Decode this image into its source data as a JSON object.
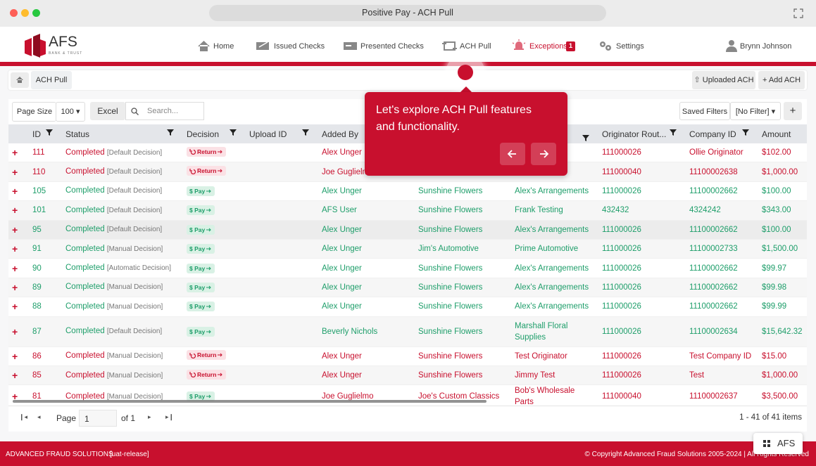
{
  "window": {
    "title": "Positive Pay - ACH Pull"
  },
  "nav": {
    "logo": "AFS",
    "logo_tagline": "BANK & TRUST",
    "items": [
      "Home",
      "Issued Checks",
      "Presented Checks",
      "ACH Pull",
      "Exceptions",
      "Settings"
    ],
    "exceptions_badge": "1",
    "user": "Brynn Johnson"
  },
  "breadcrumb": {
    "current": "ACH Pull",
    "actions": [
      "Uploaded ACH",
      "Add ACH"
    ]
  },
  "toolbar": {
    "page_size_label": "Page Size",
    "page_size": "100",
    "export": "Excel",
    "search_placeholder": "Search...",
    "saved_filters": "Saved Filters",
    "filter": "[No Filter]"
  },
  "tour": {
    "text": "Let's explore ACH Pull features and functionality."
  },
  "table": {
    "headers": [
      "ID",
      "Status",
      "Decision",
      "Upload ID",
      "Added By",
      null,
      null,
      "Originator Rout...",
      "Company ID",
      "Amount"
    ],
    "rows": [
      {
        "id": "111",
        "status": "Completed",
        "status_note": "[Default Decision]",
        "decision": "Return",
        "added_by": "Alex Unger",
        "col6": null,
        "col7": null,
        "originator_routing": "111000026",
        "company_id": "Ollie Originator",
        "amount": "$102.00",
        "color": "#c8102e"
      },
      {
        "id": "110",
        "status": "Completed",
        "status_note": "[Default Decision]",
        "decision": "Return",
        "added_by": "Joe Guglielmo",
        "col6": null,
        "col7": null,
        "originator_routing": "111000040",
        "company_id": "11100002638",
        "amount": "$1,000.00",
        "color": "#c8102e"
      },
      {
        "id": "105",
        "status": "Completed",
        "status_note": "[Default Decision]",
        "decision": "$ Pay",
        "added_by": "Alex Unger",
        "col6": "Sunshine Flowers",
        "col7": "Alex's Arrangements",
        "originator_routing": "111000026",
        "company_id": "11100002662",
        "amount": "$100.00",
        "color": "#1e9e6a"
      },
      {
        "id": "101",
        "status": "Completed",
        "status_note": "[Default Decision]",
        "decision": "$ Pay",
        "added_by": "AFS User",
        "col6": "Sunshine Flowers",
        "col7": "Frank Testing",
        "originator_routing": "432432",
        "company_id": "4324242",
        "amount": "$343.00",
        "color": "#1e9e6a"
      },
      {
        "id": "95",
        "status": "Completed",
        "status_note": "[Default Decision]",
        "decision": "$ Pay",
        "added_by": "Alex Unger",
        "col6": "Sunshine Flowers",
        "col7": "Alex's Arrangements",
        "originator_routing": "111000026",
        "company_id": "11100002662",
        "amount": "$100.00",
        "color": "#1e9e6a"
      },
      {
        "id": "91",
        "status": "Completed",
        "status_note": "[Manual Decision]",
        "decision": "$ Pay",
        "added_by": "Alex Unger",
        "col6": "Jim's Automotive",
        "col7": "Prime Automotive",
        "originator_routing": "111000026",
        "company_id": "11100002733",
        "amount": "$1,500.00",
        "color": "#1e9e6a"
      },
      {
        "id": "90",
        "status": "Completed",
        "status_note": "[Automatic Decision]",
        "decision": "$ Pay",
        "added_by": "Alex Unger",
        "col6": "Sunshine Flowers",
        "col7": "Alex's Arrangements",
        "originator_routing": "111000026",
        "company_id": "11100002662",
        "amount": "$99.97",
        "color": "#1e9e6a"
      },
      {
        "id": "89",
        "status": "Completed",
        "status_note": "[Manual Decision]",
        "decision": "$ Pay",
        "added_by": "Alex Unger",
        "col6": "Sunshine Flowers",
        "col7": "Alex's Arrangements",
        "originator_routing": "111000026",
        "company_id": "11100002662",
        "amount": "$99.98",
        "color": "#1e9e6a"
      },
      {
        "id": "88",
        "status": "Completed",
        "status_note": "[Manual Decision]",
        "decision": "$ Pay",
        "added_by": "Alex Unger",
        "col6": "Sunshine Flowers",
        "col7": "Alex's Arrangements",
        "originator_routing": "111000026",
        "company_id": "11100002662",
        "amount": "$99.99",
        "color": "#1e9e6a"
      },
      {
        "id": "87",
        "status": "Completed",
        "status_note": "[Default Decision]",
        "decision": "$ Pay",
        "added_by": "Beverly Nichols",
        "col6": "Sunshine Flowers",
        "col7": "Marshall Floral Supplies",
        "originator_routing": "111000026",
        "company_id": "11100002634",
        "amount": "$15,642.32",
        "color": "#1e9e6a"
      },
      {
        "id": "86",
        "status": "Completed",
        "status_note": "[Manual Decision]",
        "decision": "Return",
        "added_by": "Alex Unger",
        "col6": "Sunshine Flowers",
        "col7": "Test Originator",
        "originator_routing": "111000026",
        "company_id": "Test Company ID",
        "amount": "$15.00",
        "color": "#c8102e"
      },
      {
        "id": "85",
        "status": "Completed",
        "status_note": "[Manual Decision]",
        "decision": "Return",
        "added_by": "Alex Unger",
        "col6": "Sunshine Flowers",
        "col7": "Jimmy Test",
        "originator_routing": "111000026",
        "company_id": "Test",
        "amount": "$1,000.00",
        "color": "#c8102e"
      },
      {
        "id": "81",
        "status": "Completed",
        "status_note": "[Manual Decision]",
        "decision": "$ Pay",
        "added_by": "Joe Guglielmo",
        "col6": "Joe's Custom Classics",
        "col7": "Bob's Wholesale Parts",
        "originator_routing": "111000040",
        "company_id": "11100002637",
        "amount": "$3,500.00",
        "color": "#c8102e"
      }
    ]
  },
  "pager": {
    "page_label": "Page",
    "page": "1",
    "of": "of 1",
    "summary": "1 - 41 of 41 items"
  },
  "footer": {
    "company": "ADVANCED FRAUD SOLUTIONS",
    "release": "[uat-release]",
    "copyright": "© Copyright Advanced Fraud Solutions 2005-2024 | All Rights Reserved",
    "widget": "AFS"
  }
}
